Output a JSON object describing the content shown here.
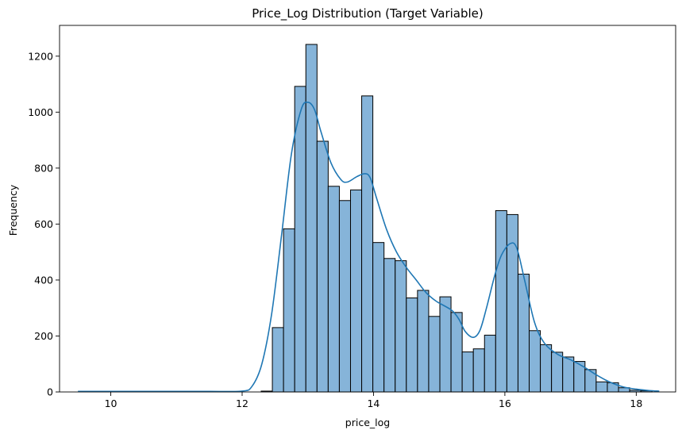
{
  "chart_data": {
    "type": "histogram",
    "title": "Price_Log Distribution (Target Variable)",
    "xlabel": "price_log",
    "ylabel": "Frequency",
    "xlim": [
      9.22,
      18.6
    ],
    "ylim": [
      0,
      1310
    ],
    "xticks": [
      10,
      12,
      14,
      16,
      18
    ],
    "yticks": [
      0,
      200,
      400,
      600,
      800,
      1000,
      1200
    ],
    "grid": false,
    "colors": {
      "bar_fill": "#86b4d9",
      "bar_edge": "#000000",
      "kde": "#1f77b4"
    },
    "bins": [
      {
        "x0": 12.29,
        "x1": 12.46,
        "count": 3
      },
      {
        "x0": 12.46,
        "x1": 12.63,
        "count": 230
      },
      {
        "x0": 12.63,
        "x1": 12.8,
        "count": 583
      },
      {
        "x0": 12.8,
        "x1": 12.97,
        "count": 1092
      },
      {
        "x0": 12.97,
        "x1": 13.14,
        "count": 1242
      },
      {
        "x0": 13.14,
        "x1": 13.31,
        "count": 896
      },
      {
        "x0": 13.31,
        "x1": 13.48,
        "count": 735
      },
      {
        "x0": 13.48,
        "x1": 13.65,
        "count": 684
      },
      {
        "x0": 13.65,
        "x1": 13.82,
        "count": 722
      },
      {
        "x0": 13.82,
        "x1": 13.99,
        "count": 1058
      },
      {
        "x0": 13.99,
        "x1": 14.16,
        "count": 534
      },
      {
        "x0": 14.16,
        "x1": 14.33,
        "count": 477
      },
      {
        "x0": 14.33,
        "x1": 14.5,
        "count": 469
      },
      {
        "x0": 14.5,
        "x1": 14.67,
        "count": 336
      },
      {
        "x0": 14.67,
        "x1": 14.84,
        "count": 363
      },
      {
        "x0": 14.84,
        "x1": 15.01,
        "count": 270
      },
      {
        "x0": 15.01,
        "x1": 15.18,
        "count": 340
      },
      {
        "x0": 15.18,
        "x1": 15.35,
        "count": 284
      },
      {
        "x0": 15.35,
        "x1": 15.52,
        "count": 143
      },
      {
        "x0": 15.52,
        "x1": 15.69,
        "count": 154
      },
      {
        "x0": 15.69,
        "x1": 15.86,
        "count": 203
      },
      {
        "x0": 15.86,
        "x1": 16.03,
        "count": 648
      },
      {
        "x0": 16.03,
        "x1": 16.2,
        "count": 634
      },
      {
        "x0": 16.2,
        "x1": 16.37,
        "count": 421
      },
      {
        "x0": 16.37,
        "x1": 16.54,
        "count": 219
      },
      {
        "x0": 16.54,
        "x1": 16.71,
        "count": 169
      },
      {
        "x0": 16.71,
        "x1": 16.88,
        "count": 142
      },
      {
        "x0": 16.88,
        "x1": 17.05,
        "count": 125
      },
      {
        "x0": 17.05,
        "x1": 17.22,
        "count": 109
      },
      {
        "x0": 17.22,
        "x1": 17.39,
        "count": 80
      },
      {
        "x0": 17.39,
        "x1": 17.56,
        "count": 36
      },
      {
        "x0": 17.56,
        "x1": 17.73,
        "count": 33
      },
      {
        "x0": 17.73,
        "x1": 17.9,
        "count": 15
      },
      {
        "x0": 17.9,
        "x1": 18.07,
        "count": 6
      },
      {
        "x0": 18.07,
        "x1": 18.24,
        "count": 4
      }
    ],
    "kde": [
      [
        9.5,
        2
      ],
      [
        10.0,
        2
      ],
      [
        10.5,
        2
      ],
      [
        11.0,
        2
      ],
      [
        11.5,
        2
      ],
      [
        12.0,
        3
      ],
      [
        12.15,
        20
      ],
      [
        12.3,
        100
      ],
      [
        12.45,
        280
      ],
      [
        12.6,
        560
      ],
      [
        12.75,
        850
      ],
      [
        12.9,
        1010
      ],
      [
        13.0,
        1035
      ],
      [
        13.1,
        1010
      ],
      [
        13.2,
        930
      ],
      [
        13.35,
        820
      ],
      [
        13.5,
        760
      ],
      [
        13.6,
        750
      ],
      [
        13.75,
        770
      ],
      [
        13.87,
        780
      ],
      [
        13.95,
        765
      ],
      [
        14.05,
        690
      ],
      [
        14.2,
        580
      ],
      [
        14.35,
        500
      ],
      [
        14.5,
        445
      ],
      [
        14.65,
        400
      ],
      [
        14.8,
        355
      ],
      [
        14.95,
        325
      ],
      [
        15.1,
        305
      ],
      [
        15.2,
        290
      ],
      [
        15.3,
        260
      ],
      [
        15.4,
        215
      ],
      [
        15.52,
        195
      ],
      [
        15.62,
        220
      ],
      [
        15.72,
        300
      ],
      [
        15.85,
        420
      ],
      [
        15.95,
        490
      ],
      [
        16.08,
        530
      ],
      [
        16.18,
        515
      ],
      [
        16.3,
        400
      ],
      [
        16.45,
        250
      ],
      [
        16.6,
        175
      ],
      [
        16.8,
        135
      ],
      [
        17.0,
        115
      ],
      [
        17.2,
        90
      ],
      [
        17.4,
        60
      ],
      [
        17.6,
        35
      ],
      [
        17.8,
        18
      ],
      [
        18.0,
        10
      ],
      [
        18.2,
        5
      ],
      [
        18.35,
        3
      ]
    ]
  }
}
